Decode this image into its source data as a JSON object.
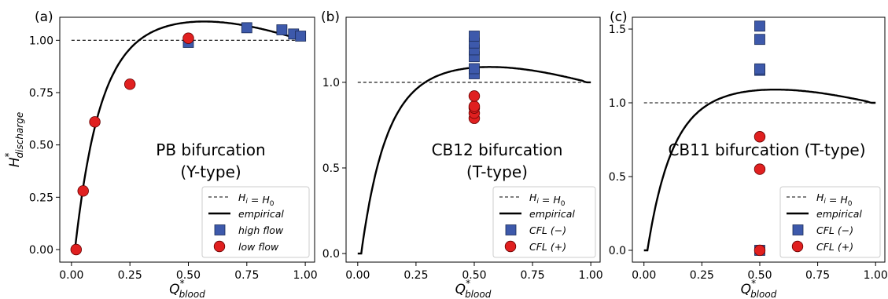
{
  "figure": {
    "xlabel_main": "Q",
    "xlabel_sup": "*",
    "xlabel_sub": "blood",
    "ylabel_main": "H",
    "ylabel_sup": "*",
    "ylabel_sub": "discharge"
  },
  "chart_data": [
    {
      "type": "scatter",
      "panel_label": "(a)",
      "annotation": [
        "PB bifurcation",
        "(Y-type)"
      ],
      "xlim": [
        -0.05,
        1.04
      ],
      "ylim": [
        -0.06,
        1.11
      ],
      "xticks": [
        "0.00",
        "0.25",
        "0.50",
        "0.75",
        "1.00"
      ],
      "yticks": [
        "0.00",
        "0.25",
        "0.50",
        "0.75",
        "1.00"
      ],
      "ytick_values": [
        0,
        0.25,
        0.5,
        0.75,
        1.0
      ],
      "legend_position": "lower right",
      "legend": [
        {
          "kind": "dashed",
          "main": "H",
          "sub": "i",
          "rest": " = ",
          "main2": "H",
          "sub2": "0"
        },
        {
          "kind": "solid",
          "text": "empirical"
        },
        {
          "kind": "square",
          "text": "high flow"
        },
        {
          "kind": "circle",
          "text": "low flow"
        }
      ],
      "reference_line": {
        "y": 1.0,
        "x": [
          0.0,
          1.0
        ]
      },
      "empirical_curve": "model",
      "series": [
        {
          "marker": "square",
          "color": "#3d59ab",
          "x": [
            0.5,
            0.75,
            0.9,
            0.95,
            0.98
          ],
          "y": [
            0.99,
            1.06,
            1.05,
            1.03,
            1.02
          ]
        },
        {
          "marker": "circle",
          "color": "#e02020",
          "x": [
            0.02,
            0.05,
            0.1,
            0.25,
            0.5
          ],
          "y": [
            0.0,
            0.28,
            0.61,
            0.79,
            1.01
          ]
        }
      ]
    },
    {
      "type": "scatter",
      "panel_label": "(b)",
      "annotation": [
        "CB12 bifurcation",
        "(T-type)"
      ],
      "xlim": [
        -0.05,
        1.04
      ],
      "ylim": [
        -0.05,
        1.38
      ],
      "xticks": [
        "0.00",
        "0.25",
        "0.50",
        "0.75",
        "1.00"
      ],
      "yticks": [
        "0.0",
        "0.5",
        "1.0"
      ],
      "ytick_values": [
        0,
        0.5,
        1.0
      ],
      "legend_position": "lower right",
      "legend": [
        {
          "kind": "dashed",
          "main": "H",
          "sub": "i",
          "rest": " = ",
          "main2": "H",
          "sub2": "0"
        },
        {
          "kind": "solid",
          "text": "empirical"
        },
        {
          "kind": "square",
          "text": "CFL (−)"
        },
        {
          "kind": "circle",
          "text": "CFL (+)"
        }
      ],
      "reference_line": {
        "y": 1.0,
        "x": [
          0.0,
          1.0
        ]
      },
      "empirical_curve": "model",
      "series": [
        {
          "marker": "square",
          "color": "#3d59ab",
          "x": [
            0.5,
            0.5,
            0.5,
            0.5,
            0.5,
            0.5
          ],
          "y": [
            1.05,
            1.08,
            1.15,
            1.19,
            1.23,
            1.27
          ]
        },
        {
          "marker": "circle",
          "color": "#e02020",
          "x": [
            0.5,
            0.5,
            0.5,
            0.5,
            0.5
          ],
          "y": [
            0.79,
            0.82,
            0.85,
            0.86,
            0.92
          ]
        }
      ]
    },
    {
      "type": "scatter",
      "panel_label": "(c)",
      "annotation": [
        "CB11 bifurcation (T-type)"
      ],
      "xlim": [
        -0.05,
        1.04
      ],
      "ylim": [
        -0.08,
        1.58
      ],
      "xticks": [
        "0.00",
        "0.25",
        "0.50",
        "0.75",
        "1.00"
      ],
      "yticks": [
        "0.0",
        "0.5",
        "1.0",
        "1.5"
      ],
      "ytick_values": [
        0,
        0.5,
        1.0,
        1.5
      ],
      "legend_position": "lower right",
      "legend": [
        {
          "kind": "dashed",
          "main": "H",
          "sub": "i",
          "rest": " = ",
          "main2": "H",
          "sub2": "0"
        },
        {
          "kind": "solid",
          "text": "empirical"
        },
        {
          "kind": "square",
          "text": "CFL (−)"
        },
        {
          "kind": "circle",
          "text": "CFL (+)"
        }
      ],
      "reference_line": {
        "y": 1.0,
        "x": [
          0.0,
          1.0
        ]
      },
      "empirical_curve": "model",
      "series": [
        {
          "marker": "square",
          "color": "#3d59ab",
          "x": [
            0.5,
            0.5,
            0.5,
            0.5,
            0.5
          ],
          "y": [
            0.0,
            1.22,
            1.23,
            1.43,
            1.52
          ]
        },
        {
          "marker": "circle",
          "color": "#e02020",
          "x": [
            0.5,
            0.5,
            0.5
          ],
          "y": [
            0.0,
            0.55,
            0.77
          ]
        }
      ]
    }
  ]
}
